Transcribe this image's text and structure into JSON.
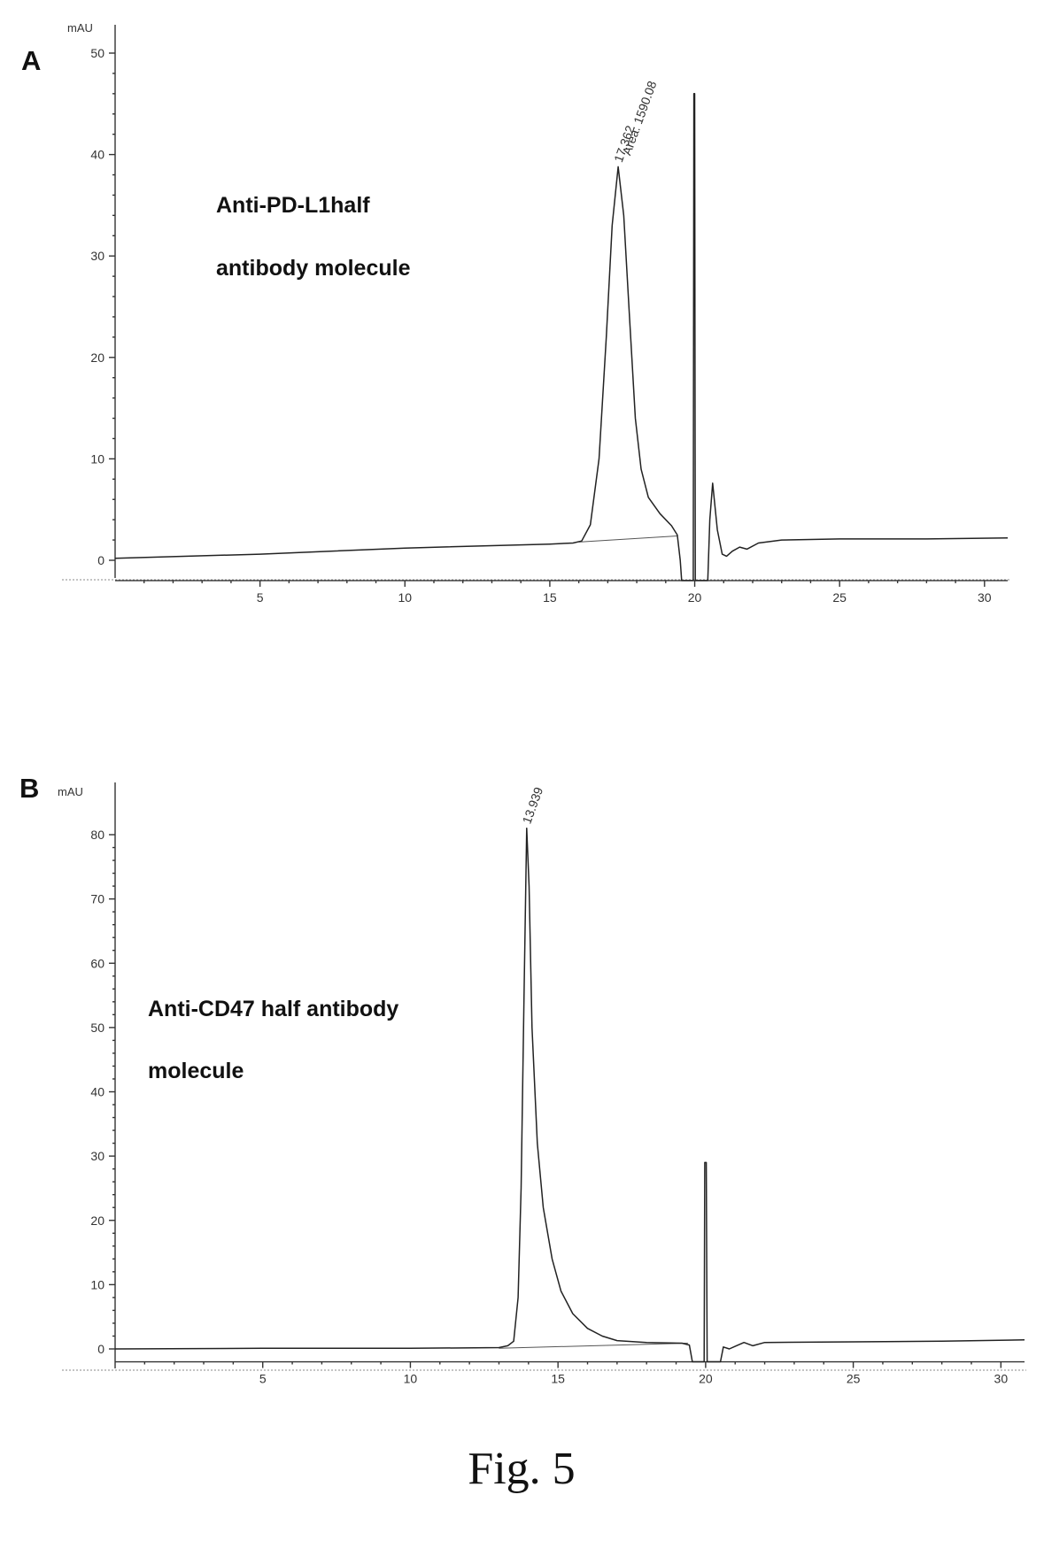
{
  "figure": {
    "caption": "Fig. 5"
  },
  "chart_data": [
    {
      "type": "line",
      "panel": "A",
      "ylabel": "mAU",
      "annotation": [
        "Anti-PD-L1half",
        "antibody molecule"
      ],
      "xlim": [
        0,
        30.8
      ],
      "ylim": [
        -2,
        52
      ],
      "xticks": [
        5,
        10,
        15,
        20,
        25,
        30
      ],
      "yticks": [
        0,
        10,
        20,
        30,
        40,
        50
      ],
      "peak_labels": [
        {
          "x": 17.362,
          "y": 38.8,
          "text": "17.362"
        },
        {
          "x": 17.65,
          "y": 39.5,
          "text": "Area: 1590.08"
        }
      ],
      "baseline": [
        [
          16.0,
          1.8
        ],
        [
          19.4,
          2.4
        ]
      ],
      "series": [
        {
          "points": [
            [
              0,
              0.2
            ],
            [
              5,
              0.6
            ],
            [
              10,
              1.2
            ],
            [
              15,
              1.6
            ],
            [
              15.8,
              1.7
            ],
            [
              16.1,
              1.9
            ],
            [
              16.4,
              3.5
            ],
            [
              16.7,
              10
            ],
            [
              16.95,
              22
            ],
            [
              17.15,
              33
            ],
            [
              17.36,
              38.8
            ],
            [
              17.55,
              34
            ],
            [
              17.75,
              24
            ],
            [
              17.95,
              14
            ],
            [
              18.15,
              9
            ],
            [
              18.4,
              6.2
            ],
            [
              18.8,
              4.6
            ],
            [
              19.2,
              3.4
            ],
            [
              19.4,
              2.5
            ],
            [
              19.5,
              0
            ],
            [
              19.55,
              -2
            ],
            [
              19.95,
              -2
            ],
            [
              19.97,
              46
            ],
            [
              20.0,
              46
            ],
            [
              20.02,
              -2
            ],
            [
              20.45,
              -2
            ],
            [
              20.52,
              4
            ],
            [
              20.62,
              7.6
            ],
            [
              20.78,
              3
            ],
            [
              20.95,
              0.6
            ],
            [
              21.1,
              0.4
            ],
            [
              21.3,
              0.9
            ],
            [
              21.55,
              1.3
            ],
            [
              21.8,
              1.1
            ],
            [
              22.2,
              1.7
            ],
            [
              23,
              2.0
            ],
            [
              25,
              2.1
            ],
            [
              28,
              2.1
            ],
            [
              30.8,
              2.2
            ]
          ]
        }
      ]
    },
    {
      "type": "line",
      "panel": "B",
      "ylabel": "mAU",
      "annotation": [
        "Anti-CD47  half  antibody",
        "molecule"
      ],
      "xlim": [
        0,
        30.8
      ],
      "ylim": [
        -2,
        87
      ],
      "xticks": [
        5,
        10,
        15,
        20,
        25,
        30
      ],
      "yticks": [
        0,
        10,
        20,
        30,
        40,
        50,
        60,
        70,
        80
      ],
      "peak_labels": [
        {
          "x": 13.939,
          "y": 81,
          "text": "13.939"
        }
      ],
      "baseline": [
        [
          13.0,
          0.1
        ],
        [
          19.4,
          0.9
        ]
      ],
      "series": [
        {
          "points": [
            [
              0,
              0
            ],
            [
              5,
              0.1
            ],
            [
              10,
              0.1
            ],
            [
              13.0,
              0.2
            ],
            [
              13.3,
              0.5
            ],
            [
              13.5,
              1.2
            ],
            [
              13.65,
              8
            ],
            [
              13.75,
              25
            ],
            [
              13.85,
              55
            ],
            [
              13.94,
              81
            ],
            [
              14.02,
              72
            ],
            [
              14.12,
              50
            ],
            [
              14.3,
              32
            ],
            [
              14.5,
              22
            ],
            [
              14.8,
              14
            ],
            [
              15.1,
              9
            ],
            [
              15.5,
              5.5
            ],
            [
              16,
              3.2
            ],
            [
              16.5,
              2
            ],
            [
              17,
              1.3
            ],
            [
              18,
              1.0
            ],
            [
              19.2,
              0.9
            ],
            [
              19.45,
              0.6
            ],
            [
              19.55,
              -2
            ],
            [
              19.95,
              -2
            ],
            [
              19.97,
              29
            ],
            [
              20.02,
              29
            ],
            [
              20.05,
              -2
            ],
            [
              20.5,
              -2
            ],
            [
              20.6,
              0.3
            ],
            [
              20.8,
              0
            ],
            [
              21,
              0.4
            ],
            [
              21.3,
              1.0
            ],
            [
              21.6,
              0.5
            ],
            [
              22,
              1.0
            ],
            [
              25,
              1.1
            ],
            [
              28,
              1.2
            ],
            [
              30.8,
              1.4
            ]
          ]
        }
      ]
    }
  ]
}
